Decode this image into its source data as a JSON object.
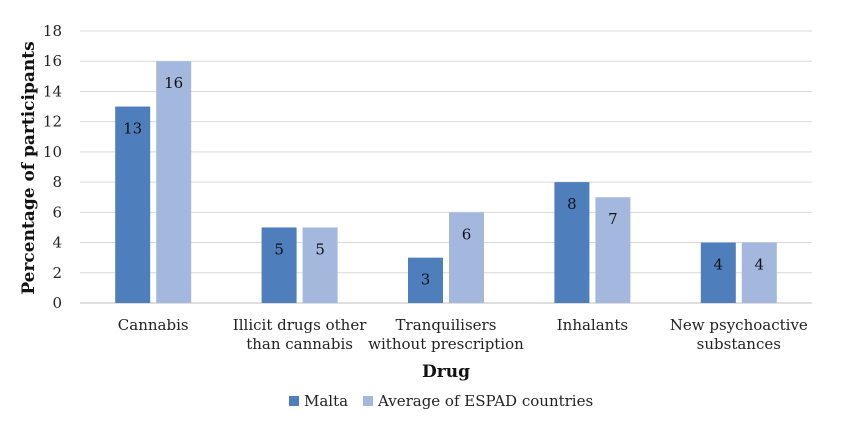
{
  "chart_data": {
    "type": "bar",
    "categories": [
      "Cannabis",
      "Illicit drugs other than cannabis",
      "Tranquilisers without prescription",
      "Inhalants",
      "New psychoactive substances"
    ],
    "category_lines": [
      [
        "Cannabis"
      ],
      [
        "Illicit drugs other",
        "than cannabis"
      ],
      [
        "Tranquilisers",
        "without prescription"
      ],
      [
        "Inhalants"
      ],
      [
        "New psychoactive",
        "substances"
      ]
    ],
    "series": [
      {
        "name": "Malta",
        "values": [
          13,
          5,
          3,
          8,
          4
        ],
        "color": "#4f7ebd"
      },
      {
        "name": "Average of ESPAD countries",
        "values": [
          16,
          5,
          6,
          7,
          4
        ],
        "color": "#a4b8de"
      }
    ],
    "xlabel": "Drug",
    "ylabel": "Percentage of participants",
    "ylim": [
      0,
      18
    ],
    "yticks": [
      0,
      2,
      4,
      6,
      8,
      10,
      12,
      14,
      16,
      18
    ],
    "grid": true,
    "legend_position": "bottom"
  }
}
